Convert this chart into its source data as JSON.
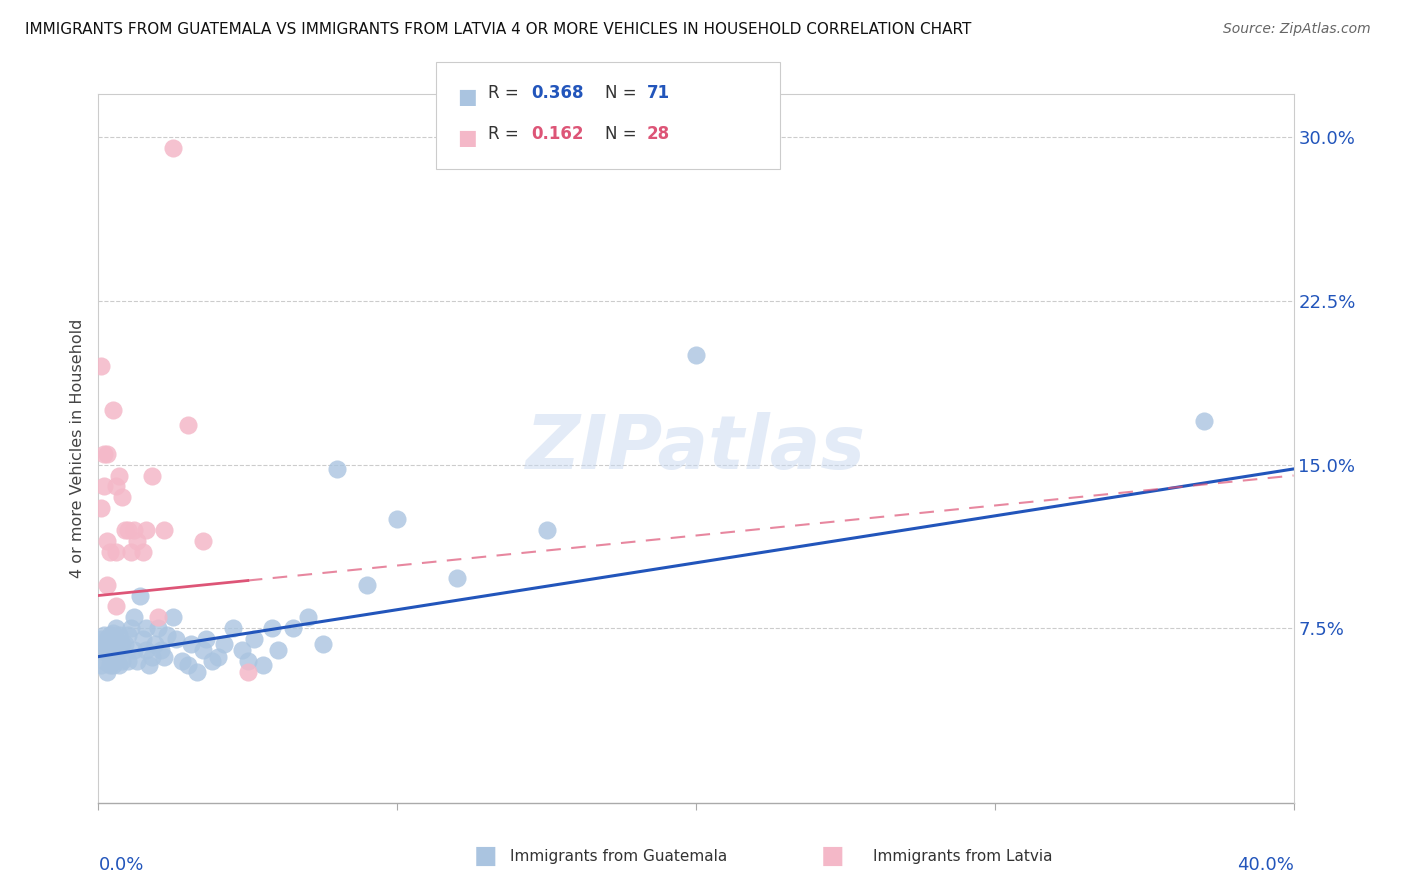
{
  "title": "IMMIGRANTS FROM GUATEMALA VS IMMIGRANTS FROM LATVIA 4 OR MORE VEHICLES IN HOUSEHOLD CORRELATION CHART",
  "source": "Source: ZipAtlas.com",
  "ylabel": "4 or more Vehicles in Household",
  "ytick_vals": [
    0.075,
    0.15,
    0.225,
    0.3
  ],
  "xlim": [
    0.0,
    0.4
  ],
  "ylim": [
    -0.005,
    0.32
  ],
  "legend_blue_R": "0.368",
  "legend_blue_N": "71",
  "legend_pink_R": "0.162",
  "legend_pink_N": "28",
  "blue_color": "#aac4e0",
  "blue_line_color": "#2255bb",
  "pink_color": "#f4b8c8",
  "pink_line_color": "#dd5577",
  "watermark": "ZIPatlas",
  "guatemala_x": [
    0.001,
    0.001,
    0.001,
    0.002,
    0.002,
    0.002,
    0.003,
    0.003,
    0.003,
    0.004,
    0.004,
    0.004,
    0.004,
    0.005,
    0.005,
    0.005,
    0.005,
    0.006,
    0.006,
    0.006,
    0.007,
    0.007,
    0.007,
    0.008,
    0.008,
    0.009,
    0.01,
    0.01,
    0.011,
    0.012,
    0.012,
    0.013,
    0.014,
    0.015,
    0.016,
    0.016,
    0.017,
    0.018,
    0.019,
    0.02,
    0.021,
    0.022,
    0.023,
    0.025,
    0.026,
    0.028,
    0.03,
    0.031,
    0.033,
    0.035,
    0.036,
    0.038,
    0.04,
    0.042,
    0.045,
    0.048,
    0.05,
    0.052,
    0.055,
    0.058,
    0.06,
    0.065,
    0.07,
    0.075,
    0.08,
    0.09,
    0.1,
    0.12,
    0.15,
    0.2,
    0.37
  ],
  "guatemala_y": [
    0.07,
    0.065,
    0.058,
    0.068,
    0.06,
    0.072,
    0.055,
    0.07,
    0.065,
    0.058,
    0.072,
    0.068,
    0.062,
    0.073,
    0.067,
    0.058,
    0.06,
    0.064,
    0.07,
    0.075,
    0.065,
    0.058,
    0.072,
    0.068,
    0.06,
    0.068,
    0.06,
    0.072,
    0.075,
    0.08,
    0.065,
    0.06,
    0.09,
    0.07,
    0.075,
    0.065,
    0.058,
    0.062,
    0.068,
    0.075,
    0.065,
    0.062,
    0.072,
    0.08,
    0.07,
    0.06,
    0.058,
    0.068,
    0.055,
    0.065,
    0.07,
    0.06,
    0.062,
    0.068,
    0.075,
    0.065,
    0.06,
    0.07,
    0.058,
    0.075,
    0.065,
    0.075,
    0.08,
    0.068,
    0.148,
    0.095,
    0.125,
    0.098,
    0.12,
    0.2,
    0.17
  ],
  "latvia_x": [
    0.001,
    0.001,
    0.002,
    0.002,
    0.003,
    0.003,
    0.003,
    0.004,
    0.005,
    0.006,
    0.006,
    0.006,
    0.007,
    0.008,
    0.009,
    0.01,
    0.011,
    0.012,
    0.013,
    0.015,
    0.016,
    0.018,
    0.02,
    0.022,
    0.025,
    0.03,
    0.035,
    0.05
  ],
  "latvia_y": [
    0.195,
    0.13,
    0.155,
    0.14,
    0.155,
    0.115,
    0.095,
    0.11,
    0.175,
    0.14,
    0.11,
    0.085,
    0.145,
    0.135,
    0.12,
    0.12,
    0.11,
    0.12,
    0.115,
    0.11,
    0.12,
    0.145,
    0.08,
    0.12,
    0.295,
    0.168,
    0.115,
    0.055
  ],
  "blue_line_start_y": 0.062,
  "blue_line_end_y": 0.148,
  "pink_line_start_y": 0.09,
  "pink_line_end_y": 0.145
}
